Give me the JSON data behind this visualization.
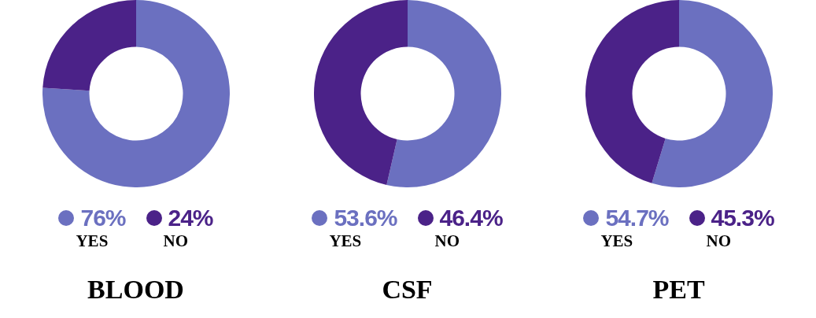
{
  "chart_data": [
    {
      "type": "donut",
      "title": "BLOOD",
      "categories": [
        "YES",
        "NO"
      ],
      "values": [
        76,
        24
      ],
      "colors": [
        "#6b70c0",
        "#4b2288"
      ],
      "value_labels": [
        "76%",
        "24%"
      ],
      "legend": "bottom"
    },
    {
      "type": "donut",
      "title": "CSF",
      "categories": [
        "YES",
        "NO"
      ],
      "values": [
        53.6,
        46.4
      ],
      "colors": [
        "#6b70c0",
        "#4b2288"
      ],
      "value_labels": [
        "53.6%",
        "46.4%"
      ],
      "legend": "bottom"
    },
    {
      "type": "donut",
      "title": "PET",
      "categories": [
        "YES",
        "NO"
      ],
      "values": [
        54.7,
        45.3
      ],
      "colors": [
        "#6b70c0",
        "#4b2288"
      ],
      "value_labels": [
        "54.7%",
        "45.3%"
      ],
      "legend": "bottom"
    }
  ]
}
